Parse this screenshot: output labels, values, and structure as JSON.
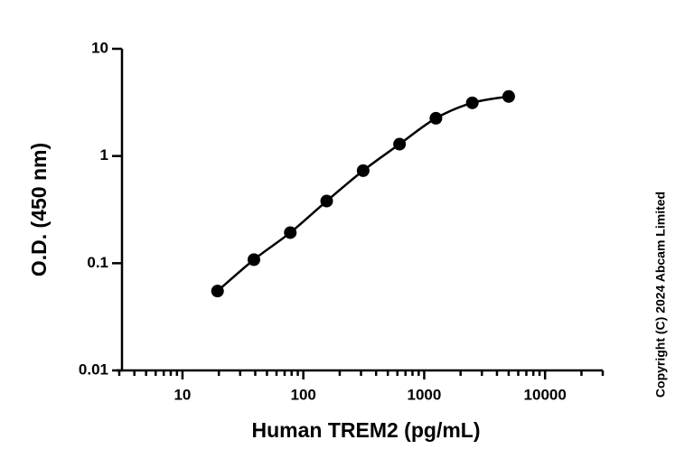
{
  "chart_data": {
    "type": "scatter",
    "x_label": "Human TREM2 (pg/mL)",
    "y_label": "O.D. (450 nm)",
    "annotation": "Copyright (C) 2024 Abcam Limited",
    "xlog": true,
    "ylog": true,
    "x_minor_ticks": true,
    "curve": true,
    "xlim": [
      3,
      30000
    ],
    "ylim": [
      0.01,
      10
    ],
    "xticks": [
      10,
      100,
      1000,
      10000
    ],
    "yticks": [
      0.01,
      0.1,
      1,
      10
    ],
    "series": [
      {
        "color": "#000000",
        "x": [
          19.5,
          39,
          78,
          156,
          312.5,
          625,
          1250,
          2500,
          5000
        ],
        "values": [
          0.055,
          0.108,
          0.193,
          0.38,
          0.73,
          1.29,
          2.25,
          3.13,
          3.59
        ]
      }
    ]
  }
}
